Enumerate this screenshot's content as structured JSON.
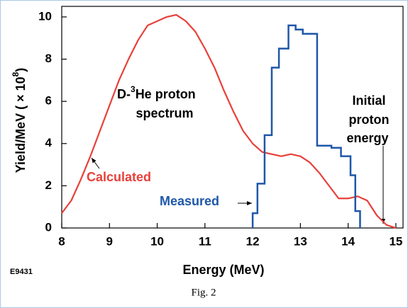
{
  "chart_data": {
    "type": "line",
    "xlabel": "Energy (MeV)",
    "ylabel": {
      "text": "Yield/MeV ( × 10",
      "sup": "8",
      "close": ")"
    },
    "xlim": [
      8,
      15.15
    ],
    "ylim": [
      0,
      10.5
    ],
    "xticks": [
      8,
      9,
      10,
      11,
      12,
      13,
      14,
      15
    ],
    "yticks": [
      0,
      2,
      4,
      6,
      8,
      10
    ],
    "series": [
      {
        "name": "Calculated",
        "color": "#e8403a",
        "x": [
          8,
          8.2,
          8.4,
          8.6,
          8.8,
          9.0,
          9.2,
          9.4,
          9.6,
          9.8,
          10.0,
          10.2,
          10.4,
          10.6,
          10.8,
          11.0,
          11.2,
          11.4,
          11.6,
          11.8,
          12.0,
          12.2,
          12.4,
          12.6,
          12.8,
          13.0,
          13.2,
          13.4,
          13.6,
          13.8,
          14.0,
          14.2,
          14.4,
          14.6,
          14.8,
          15.0
        ],
        "values": [
          0.7,
          1.3,
          2.3,
          3.4,
          4.6,
          5.8,
          7.0,
          8.0,
          8.9,
          9.6,
          9.8,
          10.0,
          10.1,
          9.8,
          9.3,
          8.5,
          7.6,
          6.5,
          5.5,
          4.6,
          4.0,
          3.6,
          3.5,
          3.4,
          3.5,
          3.4,
          3.1,
          2.6,
          2.0,
          1.4,
          1.4,
          1.5,
          1.3,
          0.6,
          0.15,
          0
        ]
      },
      {
        "name": "Measured",
        "color": "#1f57a8",
        "bins": [
          12.0,
          12.1,
          12.25,
          12.4,
          12.55,
          12.75,
          12.9,
          13.05,
          13.35,
          13.65,
          13.85,
          14.05,
          14.15,
          14.25
        ],
        "values": [
          0.7,
          2.1,
          4.4,
          7.6,
          8.5,
          9.6,
          9.4,
          9.2,
          3.9,
          3.8,
          3.4,
          2.5,
          0.8
        ]
      }
    ],
    "annotations": {
      "spectrum": {
        "pre": "D-",
        "sup": "3",
        "post": "He proton",
        "line2": "spectrum"
      },
      "initial": [
        "Initial",
        "proton",
        "energy"
      ]
    },
    "code": "E9431",
    "caption": "Fig. 2"
  }
}
